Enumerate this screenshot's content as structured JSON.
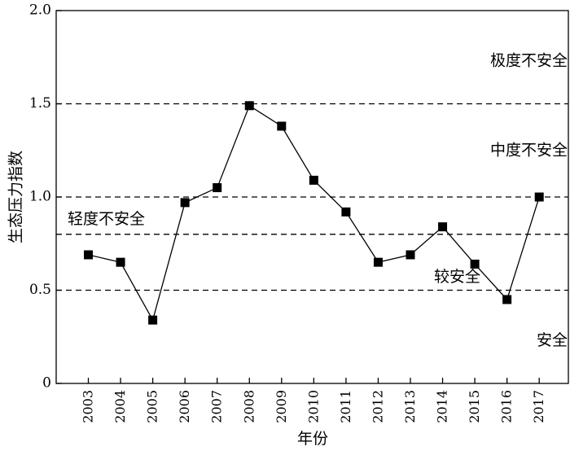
{
  "chart_data": {
    "type": "line",
    "xlabel": "年份",
    "ylabel": "生态压力指数",
    "ylim": [
      0,
      2.0
    ],
    "yticks": [
      "0",
      "0.5",
      "1.0",
      "1.5",
      "2.0"
    ],
    "categories": [
      "2003",
      "2004",
      "2005",
      "2006",
      "2007",
      "2008",
      "2009",
      "2010",
      "2011",
      "2012",
      "2013",
      "2014",
      "2015",
      "2016",
      "2017"
    ],
    "series": [
      {
        "values": [
          0.69,
          0.65,
          0.34,
          0.97,
          1.05,
          1.49,
          1.38,
          1.09,
          0.92,
          0.65,
          0.69,
          0.84,
          0.64,
          0.45,
          1.0
        ]
      }
    ],
    "thresholds": [
      0.5,
      0.8,
      1.0,
      1.5
    ],
    "zones": [
      {
        "label": "极度不安全",
        "y": 1.73
      },
      {
        "label": "中度不安全",
        "y": 1.25
      },
      {
        "label": "轻度不安全",
        "y": 0.88
      },
      {
        "label": "较安全",
        "y": 0.57
      },
      {
        "label": "安全",
        "y": 0.23
      }
    ],
    "grid": false,
    "legend": "none",
    "line_color": "#000000",
    "threshold_style": "dashed"
  }
}
